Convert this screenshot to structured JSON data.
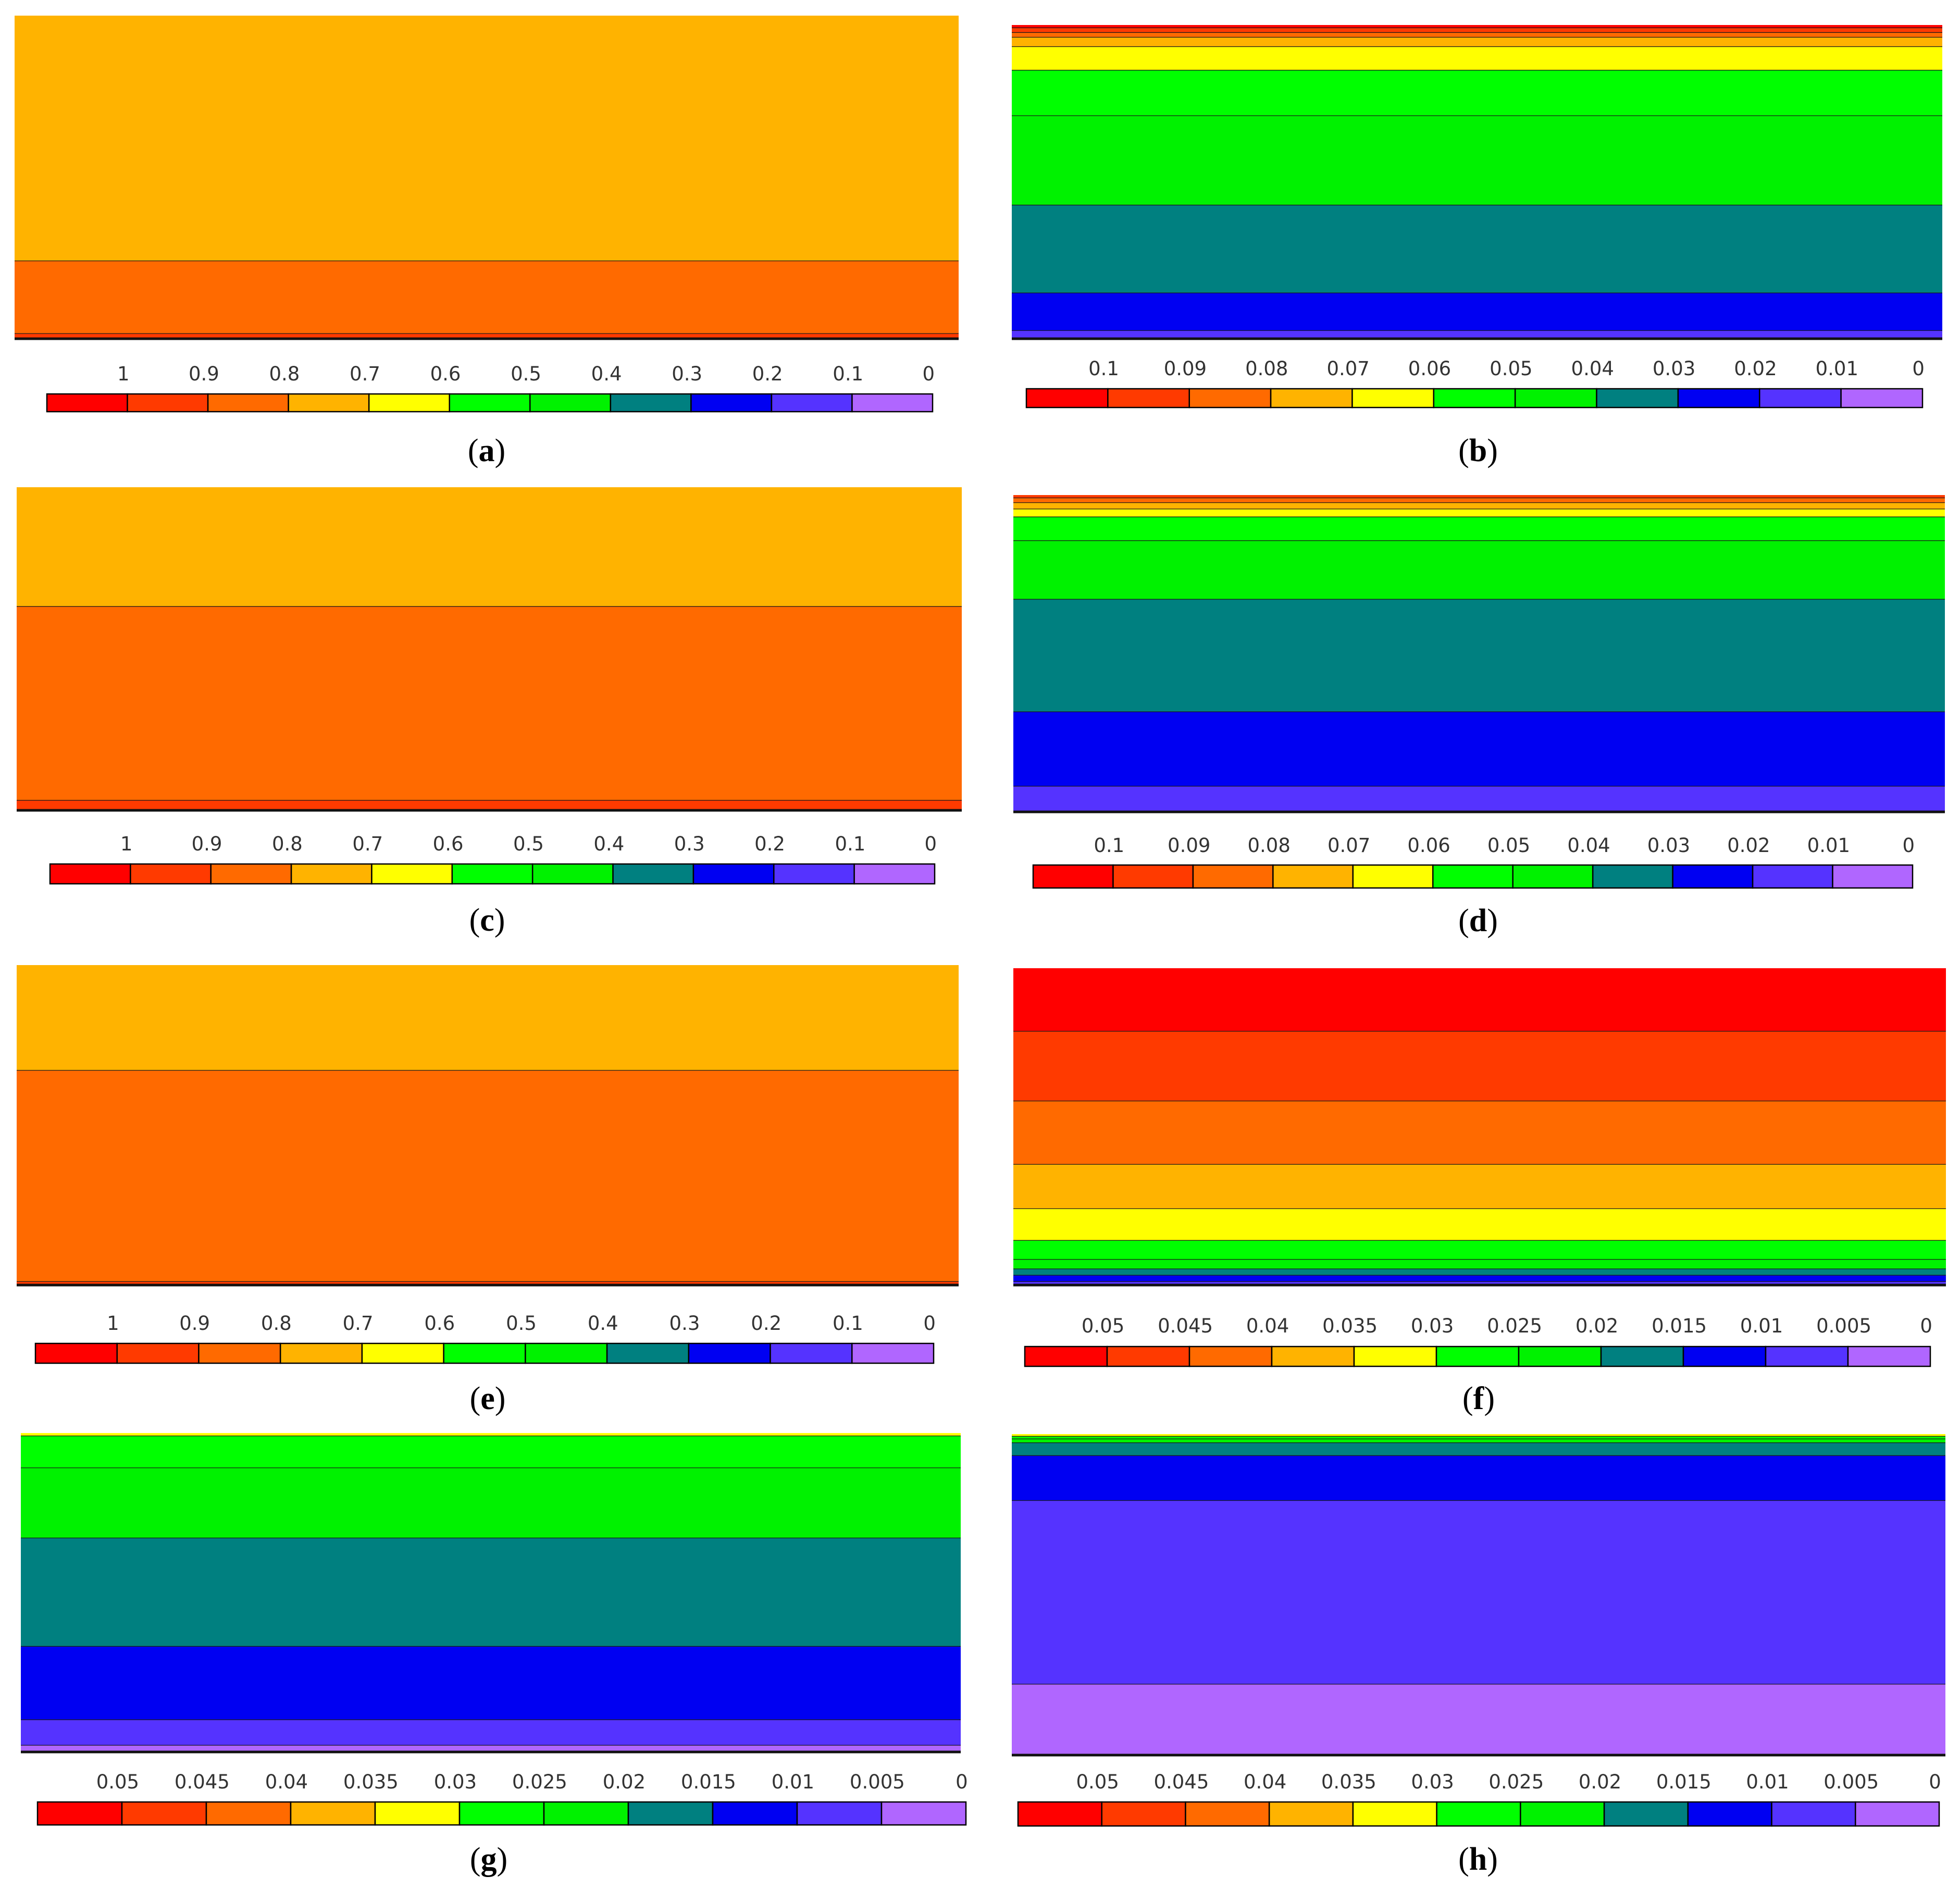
{
  "colormap": [
    "#ff0000",
    "#ff3a00",
    "#ff6a00",
    "#ffb300",
    "#ffff00",
    "#00ff00",
    "#00f200",
    "#008080",
    "#0000f2",
    "#5533ff",
    "#b066ff"
  ],
  "chart_data": [
    {
      "id": "a",
      "type": "heatmap",
      "caption_letter": "a",
      "colorbar_ticks": [
        "1",
        "0.9",
        "0.8",
        "0.7",
        "0.6",
        "0.5",
        "0.4",
        "0.3",
        "0.2",
        "0.1",
        "0"
      ],
      "bands": [
        {
          "color": 3,
          "frac": 0.76
        },
        {
          "color": 2,
          "frac": 0.225
        },
        {
          "color": 1,
          "frac": 0.015
        }
      ]
    },
    {
      "id": "b",
      "type": "heatmap",
      "caption_letter": "b",
      "colorbar_ticks": [
        "0.1",
        "0.09",
        "0.08",
        "0.07",
        "0.06",
        "0.05",
        "0.04",
        "0.03",
        "0.02",
        "0.01",
        "0"
      ],
      "bands": [
        {
          "color": 0,
          "frac": 0.01
        },
        {
          "color": 1,
          "frac": 0.015
        },
        {
          "color": 2,
          "frac": 0.015
        },
        {
          "color": 3,
          "frac": 0.03
        },
        {
          "color": 4,
          "frac": 0.075
        },
        {
          "color": 5,
          "frac": 0.145
        },
        {
          "color": 6,
          "frac": 0.285
        },
        {
          "color": 7,
          "frac": 0.28
        },
        {
          "color": 8,
          "frac": 0.12
        },
        {
          "color": 9,
          "frac": 0.025
        }
      ]
    },
    {
      "id": "c",
      "type": "heatmap",
      "caption_letter": "c",
      "colorbar_ticks": [
        "1",
        "0.9",
        "0.8",
        "0.7",
        "0.6",
        "0.5",
        "0.4",
        "0.3",
        "0.2",
        "0.1",
        "0"
      ],
      "bands": [
        {
          "color": 3,
          "frac": 0.37
        },
        {
          "color": 2,
          "frac": 0.6
        },
        {
          "color": 1,
          "frac": 0.03
        }
      ]
    },
    {
      "id": "d",
      "type": "heatmap",
      "caption_letter": "d",
      "colorbar_ticks": [
        "0.1",
        "0.09",
        "0.08",
        "0.07",
        "0.06",
        "0.05",
        "0.04",
        "0.03",
        "0.02",
        "0.01",
        "0"
      ],
      "bands": [
        {
          "color": 1,
          "frac": 0.01
        },
        {
          "color": 2,
          "frac": 0.015
        },
        {
          "color": 3,
          "frac": 0.02
        },
        {
          "color": 4,
          "frac": 0.025
        },
        {
          "color": 5,
          "frac": 0.075
        },
        {
          "color": 6,
          "frac": 0.185
        },
        {
          "color": 7,
          "frac": 0.355
        },
        {
          "color": 8,
          "frac": 0.235
        },
        {
          "color": 9,
          "frac": 0.08
        }
      ]
    },
    {
      "id": "e",
      "type": "heatmap",
      "caption_letter": "e",
      "colorbar_ticks": [
        "1",
        "0.9",
        "0.8",
        "0.7",
        "0.6",
        "0.5",
        "0.4",
        "0.3",
        "0.2",
        "0.1",
        "0"
      ],
      "bands": [
        {
          "color": 3,
          "frac": 0.33
        },
        {
          "color": 2,
          "frac": 0.66
        },
        {
          "color": 1,
          "frac": 0.01
        }
      ]
    },
    {
      "id": "f",
      "type": "heatmap",
      "caption_letter": "f",
      "colorbar_ticks": [
        "0.05",
        "0.045",
        "0.04",
        "0.035",
        "0.03",
        "0.025",
        "0.02",
        "0.015",
        "0.01",
        "0.005",
        "0"
      ],
      "bands": [
        {
          "color": 0,
          "frac": 0.2
        },
        {
          "color": 1,
          "frac": 0.22
        },
        {
          "color": 2,
          "frac": 0.2
        },
        {
          "color": 3,
          "frac": 0.14
        },
        {
          "color": 4,
          "frac": 0.1
        },
        {
          "color": 5,
          "frac": 0.06
        },
        {
          "color": 6,
          "frac": 0.03
        },
        {
          "color": 7,
          "frac": 0.02
        },
        {
          "color": 8,
          "frac": 0.02
        },
        {
          "color": 9,
          "frac": 0.01
        }
      ]
    },
    {
      "id": "g",
      "type": "heatmap",
      "caption_letter": "g",
      "colorbar_ticks": [
        "0.05",
        "0.045",
        "0.04",
        "0.035",
        "0.03",
        "0.025",
        "0.02",
        "0.015",
        "0.01",
        "0.005",
        "0"
      ],
      "bands": [
        {
          "color": 4,
          "frac": 0.01
        },
        {
          "color": 5,
          "frac": 0.1
        },
        {
          "color": 6,
          "frac": 0.22
        },
        {
          "color": 7,
          "frac": 0.34
        },
        {
          "color": 8,
          "frac": 0.23
        },
        {
          "color": 9,
          "frac": 0.08
        },
        {
          "color": 10,
          "frac": 0.02
        }
      ]
    },
    {
      "id": "h",
      "type": "heatmap",
      "caption_letter": "h",
      "colorbar_ticks": [
        "0.05",
        "0.045",
        "0.04",
        "0.035",
        "0.03",
        "0.025",
        "0.02",
        "0.015",
        "0.01",
        "0.005",
        "0"
      ],
      "bands": [
        {
          "color": 4,
          "frac": 0.008
        },
        {
          "color": 5,
          "frac": 0.008
        },
        {
          "color": 6,
          "frac": 0.012
        },
        {
          "color": 7,
          "frac": 0.04
        },
        {
          "color": 8,
          "frac": 0.14
        },
        {
          "color": 9,
          "frac": 0.572
        },
        {
          "color": 10,
          "frac": 0.22
        }
      ]
    }
  ]
}
